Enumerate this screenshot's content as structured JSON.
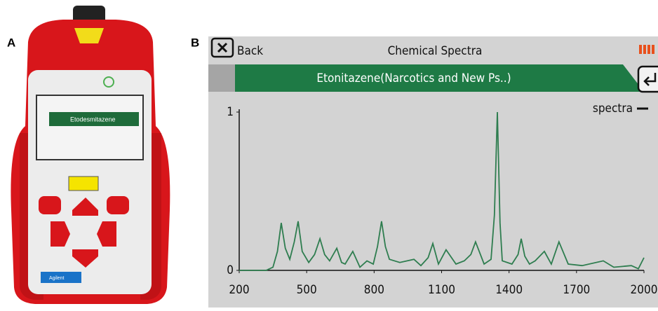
{
  "panel_labels": [
    "A",
    "B"
  ],
  "device": {
    "screen_title": "Etodesmitazene",
    "brand": "Agilent"
  },
  "header": {
    "back": "Back",
    "title": "Chemical Spectra",
    "banner": "Etonitazene(Narcotics and New Ps..)"
  },
  "chart_data": {
    "type": "line",
    "x": [
      200,
      320,
      350,
      370,
      387,
      405,
      425,
      445,
      462,
      480,
      509,
      535,
      559,
      580,
      602,
      634,
      655,
      671,
      705,
      737,
      768,
      796,
      815,
      833,
      850,
      868,
      914,
      977,
      1008,
      1040,
      1061,
      1086,
      1120,
      1164,
      1201,
      1230,
      1251,
      1289,
      1320,
      1335,
      1348,
      1360,
      1370,
      1413,
      1440,
      1454,
      1470,
      1491,
      1516,
      1557,
      1588,
      1622,
      1663,
      1725,
      1819,
      1866,
      1944,
      1975,
      2000
    ],
    "series": [
      {
        "name": "spectra",
        "color": "#2e7d4f",
        "values": [
          0,
          0,
          0.02,
          0.12,
          0.3,
          0.14,
          0.07,
          0.18,
          0.31,
          0.12,
          0.05,
          0.1,
          0.2,
          0.1,
          0.06,
          0.14,
          0.05,
          0.04,
          0.12,
          0.02,
          0.06,
          0.04,
          0.15,
          0.31,
          0.15,
          0.07,
          0.05,
          0.07,
          0.03,
          0.08,
          0.17,
          0.04,
          0.13,
          0.04,
          0.06,
          0.1,
          0.18,
          0.04,
          0.07,
          0.35,
          1.0,
          0.3,
          0.06,
          0.04,
          0.1,
          0.2,
          0.09,
          0.04,
          0.06,
          0.12,
          0.04,
          0.18,
          0.04,
          0.03,
          0.06,
          0.02,
          0.03,
          0.01,
          0.08
        ]
      }
    ],
    "xlim": [
      200,
      2000
    ],
    "ylim": [
      0,
      1
    ],
    "xticks": [
      200,
      500,
      800,
      1100,
      1400,
      1700,
      2000
    ],
    "yticks": [
      0,
      1
    ],
    "legend": "upper right"
  }
}
